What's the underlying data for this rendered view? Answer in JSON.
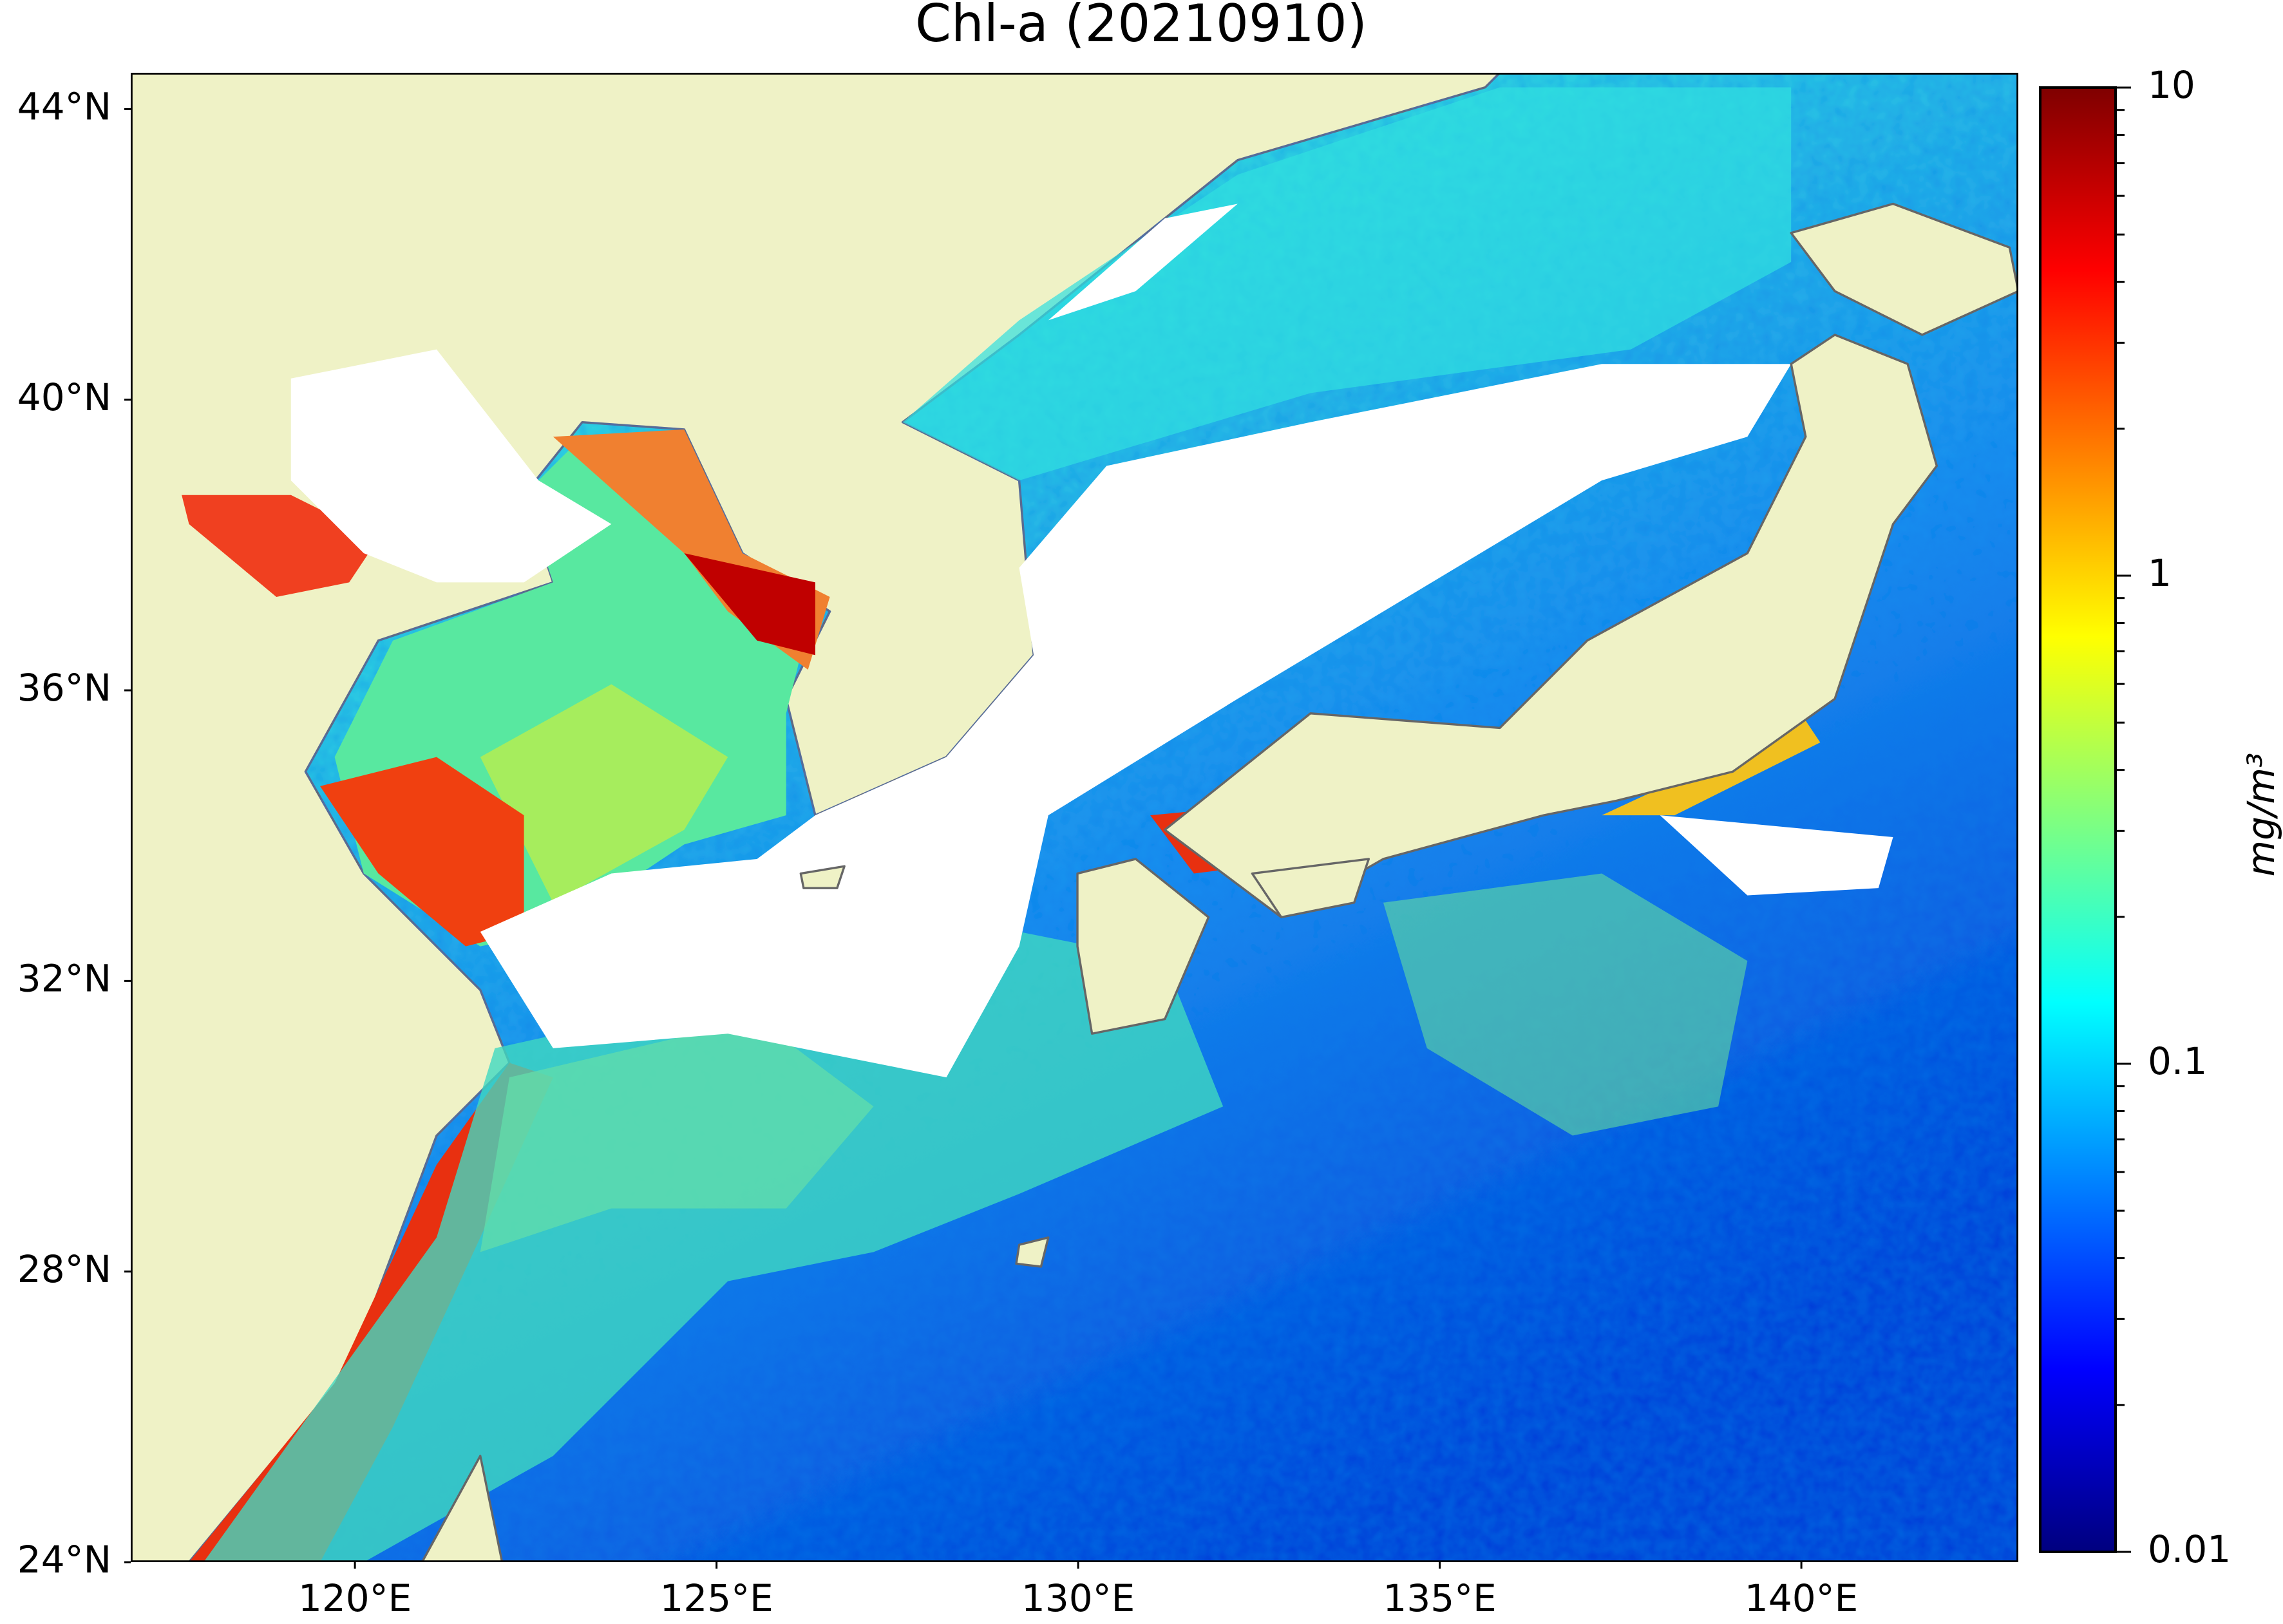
{
  "map": {
    "title": "Chl-a (20210910)",
    "lonlim": [
      116.9,
      143.0
    ],
    "latlim": [
      24,
      44.5
    ],
    "lon_ticks": [
      {
        "value": 120,
        "label": "120°E"
      },
      {
        "value": 125,
        "label": "125°E"
      },
      {
        "value": 130,
        "label": "130°E"
      },
      {
        "value": 135,
        "label": "135°E"
      },
      {
        "value": 140,
        "label": "140°E"
      }
    ],
    "lat_ticks": [
      {
        "value": 24,
        "label": "24°N"
      },
      {
        "value": 28,
        "label": "28°N"
      },
      {
        "value": 32,
        "label": "32°N"
      },
      {
        "value": 36,
        "label": "36°N"
      },
      {
        "value": 40,
        "label": "40°N"
      },
      {
        "value": 44,
        "label": "44°N"
      }
    ],
    "colorbar": {
      "label": "mg/m³",
      "scale": "log",
      "lim": [
        0.01,
        10
      ],
      "ticks": [
        0.01,
        0.1,
        1,
        10
      ]
    }
  }
}
